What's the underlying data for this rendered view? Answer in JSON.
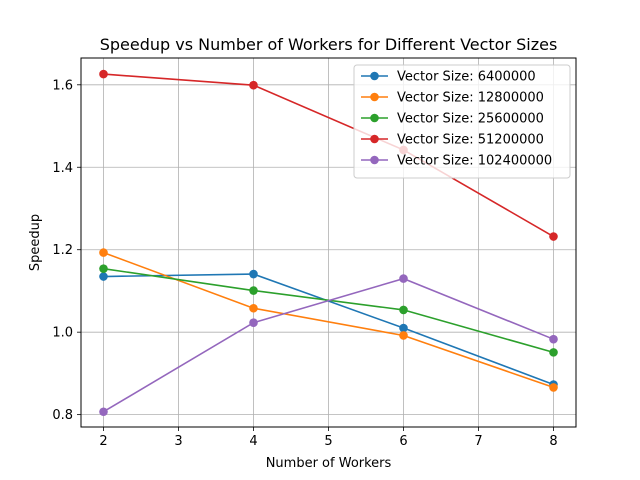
{
  "chart_data": {
    "type": "line",
    "title": "Speedup vs Number of Workers for Different Vector Sizes",
    "xlabel": "Number of Workers",
    "ylabel": "Speedup",
    "x": [
      2,
      4,
      6,
      8
    ],
    "xlim": [
      1.7,
      8.3
    ],
    "ylim": [
      0.77,
      1.665
    ],
    "xticks": [
      2,
      3,
      4,
      5,
      6,
      7,
      8
    ],
    "yticks": [
      0.8,
      1.0,
      1.2,
      1.4,
      1.6
    ],
    "grid": true,
    "legend_position": "top-right",
    "series": [
      {
        "name": "Vector Size: 6400000",
        "color": "#1f77b4",
        "values": [
          1.135,
          1.141,
          1.01,
          0.873
        ]
      },
      {
        "name": "Vector Size: 12800000",
        "color": "#ff7f0e",
        "values": [
          1.193,
          1.058,
          0.992,
          0.866
        ]
      },
      {
        "name": "Vector Size: 25600000",
        "color": "#2ca02c",
        "values": [
          1.154,
          1.101,
          1.054,
          0.951
        ]
      },
      {
        "name": "Vector Size: 51200000",
        "color": "#d62728",
        "values": [
          1.626,
          1.599,
          1.442,
          1.232
        ]
      },
      {
        "name": "Vector Size: 102400000",
        "color": "#9467bd",
        "values": [
          0.807,
          1.023,
          1.13,
          0.983
        ]
      }
    ]
  }
}
